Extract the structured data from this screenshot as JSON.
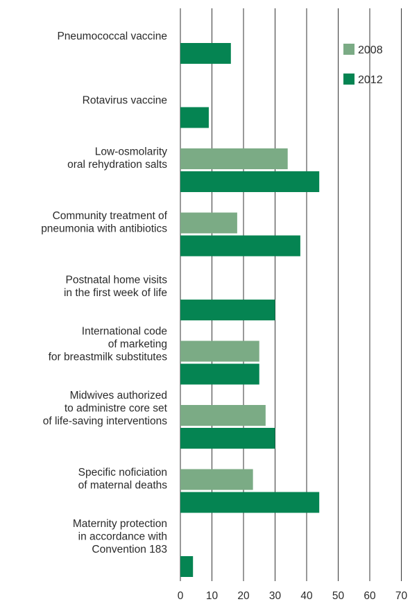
{
  "chart_data": {
    "type": "bar",
    "orientation": "horizontal",
    "categories": [
      [
        "Pneumococcal vaccine"
      ],
      [
        "Rotavirus vaccine"
      ],
      [
        "Low-osmolarity",
        "oral rehydration salts"
      ],
      [
        "Community treatment of",
        "pneumonia with antibiotics"
      ],
      [
        "Postnatal home visits",
        "in the first week of life"
      ],
      [
        "International code",
        "of marketing",
        "for breastmilk substitutes"
      ],
      [
        "Midwives authorized",
        "to administre core set",
        "of life-saving interventions"
      ],
      [
        "Specific noficiation",
        "of maternal deaths"
      ],
      [
        "Maternity protection",
        "in accordance with",
        "Convention 183"
      ]
    ],
    "series": [
      {
        "name": "2008",
        "color": "#7bab85",
        "values": [
          null,
          null,
          34,
          18,
          null,
          25,
          27,
          23,
          null
        ]
      },
      {
        "name": "2012",
        "color": "#058452",
        "values": [
          16,
          9,
          44,
          38,
          30,
          25,
          30,
          44,
          4
        ]
      }
    ],
    "xlim": [
      0,
      70
    ],
    "xticks": [
      "0",
      "10",
      "20",
      "30",
      "40",
      "50",
      "60",
      "70"
    ],
    "grid": true,
    "legend_position": "top-right"
  }
}
